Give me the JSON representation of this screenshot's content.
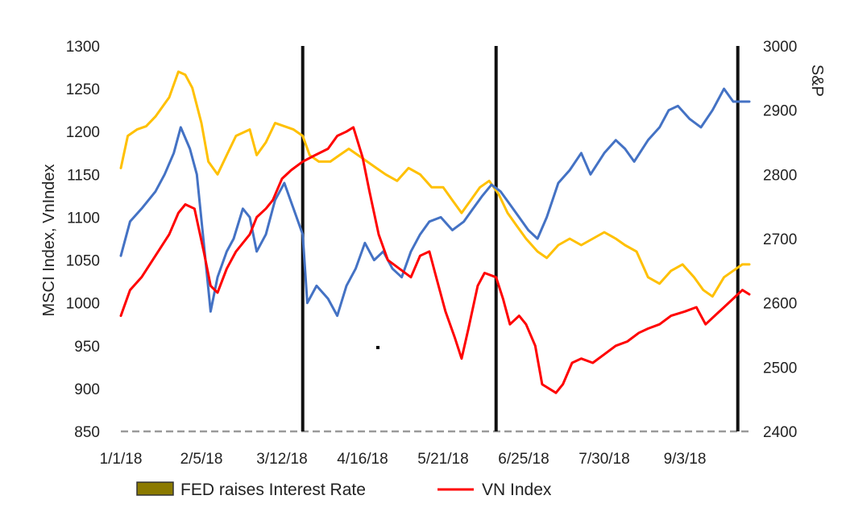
{
  "chart_data": {
    "type": "line",
    "title": "",
    "xlabel": "",
    "ylabel_left": "MSCI Index, VnIndex",
    "ylabel_right": "S&P",
    "x_tick_labels": [
      "1/1/18",
      "2/5/18",
      "3/12/18",
      "4/16/18",
      "5/21/18",
      "6/25/18",
      "7/30/18",
      "9/3/18"
    ],
    "x_tick_dates": [
      "2018-01-01",
      "2018-02-05",
      "2018-03-12",
      "2018-04-16",
      "2018-05-21",
      "2018-06-25",
      "2018-07-30",
      "2018-09-03"
    ],
    "xlim": [
      "2018-01-01",
      "2018-10-01"
    ],
    "ylim_left": [
      850,
      1300
    ],
    "yticks_left": [
      "850",
      "900",
      "950",
      "1000",
      "1050",
      "1100",
      "1150",
      "1200",
      "1250",
      "1300"
    ],
    "ylim_right": [
      2400,
      3000
    ],
    "yticks_right": [
      "2400",
      "2500",
      "2600",
      "2700",
      "2800",
      "2900",
      "3000"
    ],
    "event_dates": [
      "2018-03-21",
      "2018-06-13",
      "2018-09-26"
    ],
    "grid": false,
    "legend_position": "bottom",
    "legend": [
      {
        "label": "FED raises Interest Rate",
        "type": "box",
        "color": "#8b7a00"
      },
      {
        "label": "VN Index",
        "type": "line",
        "color": "#ff0000"
      }
    ],
    "series": [
      {
        "name": "VN Index",
        "axis": "left",
        "color": "#ff0000",
        "points": [
          [
            "2018-01-01",
            985
          ],
          [
            "2018-01-05",
            1015
          ],
          [
            "2018-01-10",
            1030
          ],
          [
            "2018-01-16",
            1055
          ],
          [
            "2018-01-22",
            1080
          ],
          [
            "2018-01-26",
            1105
          ],
          [
            "2018-01-29",
            1115
          ],
          [
            "2018-02-02",
            1110
          ],
          [
            "2018-02-06",
            1060
          ],
          [
            "2018-02-09",
            1020
          ],
          [
            "2018-02-12",
            1012
          ],
          [
            "2018-02-16",
            1040
          ],
          [
            "2018-02-20",
            1060
          ],
          [
            "2018-02-26",
            1080
          ],
          [
            "2018-03-01",
            1100
          ],
          [
            "2018-03-05",
            1110
          ],
          [
            "2018-03-08",
            1120
          ],
          [
            "2018-03-12",
            1145
          ],
          [
            "2018-03-16",
            1155
          ],
          [
            "2018-03-21",
            1165
          ],
          [
            "2018-03-26",
            1172
          ],
          [
            "2018-04-01",
            1180
          ],
          [
            "2018-04-05",
            1195
          ],
          [
            "2018-04-09",
            1200
          ],
          [
            "2018-04-12",
            1205
          ],
          [
            "2018-04-16",
            1170
          ],
          [
            "2018-04-19",
            1130
          ],
          [
            "2018-04-23",
            1080
          ],
          [
            "2018-04-27",
            1050
          ],
          [
            "2018-05-02",
            1040
          ],
          [
            "2018-05-07",
            1030
          ],
          [
            "2018-05-11",
            1055
          ],
          [
            "2018-05-15",
            1060
          ],
          [
            "2018-05-18",
            1030
          ],
          [
            "2018-05-22",
            990
          ],
          [
            "2018-05-26",
            960
          ],
          [
            "2018-05-29",
            935
          ],
          [
            "2018-06-01",
            970
          ],
          [
            "2018-06-05",
            1020
          ],
          [
            "2018-06-08",
            1035
          ],
          [
            "2018-06-13",
            1030
          ],
          [
            "2018-06-16",
            1005
          ],
          [
            "2018-06-19",
            975
          ],
          [
            "2018-06-23",
            985
          ],
          [
            "2018-06-26",
            975
          ],
          [
            "2018-06-30",
            950
          ],
          [
            "2018-07-03",
            905
          ],
          [
            "2018-07-06",
            900
          ],
          [
            "2018-07-09",
            895
          ],
          [
            "2018-07-12",
            905
          ],
          [
            "2018-07-16",
            930
          ],
          [
            "2018-07-20",
            935
          ],
          [
            "2018-07-25",
            930
          ],
          [
            "2018-07-30",
            940
          ],
          [
            "2018-08-04",
            950
          ],
          [
            "2018-08-09",
            955
          ],
          [
            "2018-08-14",
            965
          ],
          [
            "2018-08-18",
            970
          ],
          [
            "2018-08-23",
            975
          ],
          [
            "2018-08-28",
            985
          ],
          [
            "2018-09-03",
            990
          ],
          [
            "2018-09-08",
            995
          ],
          [
            "2018-09-12",
            975
          ],
          [
            "2018-09-16",
            985
          ],
          [
            "2018-09-20",
            995
          ],
          [
            "2018-09-24",
            1005
          ],
          [
            "2018-09-28",
            1015
          ],
          [
            "2018-10-01",
            1010
          ]
        ]
      },
      {
        "name": "",
        "axis": "left",
        "color": "#4472c4",
        "points": [
          [
            "2018-01-01",
            1055
          ],
          [
            "2018-01-05",
            1095
          ],
          [
            "2018-01-10",
            1110
          ],
          [
            "2018-01-16",
            1130
          ],
          [
            "2018-01-20",
            1150
          ],
          [
            "2018-01-24",
            1175
          ],
          [
            "2018-01-27",
            1205
          ],
          [
            "2018-01-31",
            1180
          ],
          [
            "2018-02-03",
            1150
          ],
          [
            "2018-02-06",
            1070
          ],
          [
            "2018-02-09",
            990
          ],
          [
            "2018-02-12",
            1030
          ],
          [
            "2018-02-16",
            1060
          ],
          [
            "2018-02-19",
            1075
          ],
          [
            "2018-02-23",
            1110
          ],
          [
            "2018-02-26",
            1100
          ],
          [
            "2018-03-01",
            1060
          ],
          [
            "2018-03-05",
            1080
          ],
          [
            "2018-03-09",
            1120
          ],
          [
            "2018-03-13",
            1140
          ],
          [
            "2018-03-17",
            1110
          ],
          [
            "2018-03-21",
            1080
          ],
          [
            "2018-03-23",
            1000
          ],
          [
            "2018-03-27",
            1020
          ],
          [
            "2018-04-01",
            1005
          ],
          [
            "2018-04-05",
            985
          ],
          [
            "2018-04-09",
            1020
          ],
          [
            "2018-04-13",
            1040
          ],
          [
            "2018-04-17",
            1070
          ],
          [
            "2018-04-21",
            1050
          ],
          [
            "2018-04-25",
            1060
          ],
          [
            "2018-04-29",
            1040
          ],
          [
            "2018-05-03",
            1030
          ],
          [
            "2018-05-07",
            1060
          ],
          [
            "2018-05-11",
            1080
          ],
          [
            "2018-05-15",
            1095
          ],
          [
            "2018-05-20",
            1100
          ],
          [
            "2018-05-25",
            1085
          ],
          [
            "2018-05-30",
            1095
          ],
          [
            "2018-06-03",
            1110
          ],
          [
            "2018-06-07",
            1125
          ],
          [
            "2018-06-11",
            1138
          ],
          [
            "2018-06-15",
            1130
          ],
          [
            "2018-06-19",
            1115
          ],
          [
            "2018-06-23",
            1100
          ],
          [
            "2018-06-27",
            1085
          ],
          [
            "2018-07-01",
            1075
          ],
          [
            "2018-07-05",
            1100
          ],
          [
            "2018-07-10",
            1140
          ],
          [
            "2018-07-15",
            1155
          ],
          [
            "2018-07-20",
            1175
          ],
          [
            "2018-07-24",
            1150
          ],
          [
            "2018-07-30",
            1175
          ],
          [
            "2018-08-04",
            1190
          ],
          [
            "2018-08-08",
            1180
          ],
          [
            "2018-08-12",
            1165
          ],
          [
            "2018-08-18",
            1190
          ],
          [
            "2018-08-23",
            1205
          ],
          [
            "2018-08-27",
            1225
          ],
          [
            "2018-08-31",
            1230
          ],
          [
            "2018-09-05",
            1215
          ],
          [
            "2018-09-10",
            1205
          ],
          [
            "2018-09-15",
            1225
          ],
          [
            "2018-09-20",
            1250
          ],
          [
            "2018-09-24",
            1235
          ],
          [
            "2018-10-01",
            1235
          ]
        ]
      },
      {
        "name": "",
        "axis": "right",
        "color": "#ffc000",
        "points": [
          [
            "2018-01-01",
            2810
          ],
          [
            "2018-01-04",
            2860
          ],
          [
            "2018-01-08",
            2870
          ],
          [
            "2018-01-12",
            2875
          ],
          [
            "2018-01-16",
            2890
          ],
          [
            "2018-01-22",
            2920
          ],
          [
            "2018-01-26",
            2960
          ],
          [
            "2018-01-29",
            2955
          ],
          [
            "2018-02-01",
            2935
          ],
          [
            "2018-02-05",
            2880
          ],
          [
            "2018-02-08",
            2820
          ],
          [
            "2018-02-12",
            2800
          ],
          [
            "2018-02-16",
            2830
          ],
          [
            "2018-02-20",
            2860
          ],
          [
            "2018-02-26",
            2870
          ],
          [
            "2018-03-01",
            2830
          ],
          [
            "2018-03-05",
            2850
          ],
          [
            "2018-03-09",
            2880
          ],
          [
            "2018-03-13",
            2875
          ],
          [
            "2018-03-17",
            2870
          ],
          [
            "2018-03-21",
            2860
          ],
          [
            "2018-03-24",
            2830
          ],
          [
            "2018-03-28",
            2820
          ],
          [
            "2018-04-02",
            2820
          ],
          [
            "2018-04-06",
            2830
          ],
          [
            "2018-04-10",
            2840
          ],
          [
            "2018-04-14",
            2830
          ],
          [
            "2018-04-18",
            2820
          ],
          [
            "2018-04-22",
            2810
          ],
          [
            "2018-04-26",
            2800
          ],
          [
            "2018-05-01",
            2790
          ],
          [
            "2018-05-06",
            2810
          ],
          [
            "2018-05-11",
            2800
          ],
          [
            "2018-05-16",
            2780
          ],
          [
            "2018-05-21",
            2780
          ],
          [
            "2018-05-25",
            2760
          ],
          [
            "2018-05-29",
            2740
          ],
          [
            "2018-06-02",
            2760
          ],
          [
            "2018-06-06",
            2780
          ],
          [
            "2018-06-10",
            2790
          ],
          [
            "2018-06-14",
            2770
          ],
          [
            "2018-06-18",
            2740
          ],
          [
            "2018-06-22",
            2720
          ],
          [
            "2018-06-26",
            2700
          ],
          [
            "2018-07-01",
            2680
          ],
          [
            "2018-07-05",
            2670
          ],
          [
            "2018-07-10",
            2690
          ],
          [
            "2018-07-15",
            2700
          ],
          [
            "2018-07-20",
            2690
          ],
          [
            "2018-07-25",
            2700
          ],
          [
            "2018-07-30",
            2710
          ],
          [
            "2018-08-04",
            2700
          ],
          [
            "2018-08-08",
            2690
          ],
          [
            "2018-08-13",
            2680
          ],
          [
            "2018-08-18",
            2640
          ],
          [
            "2018-08-23",
            2630
          ],
          [
            "2018-08-28",
            2650
          ],
          [
            "2018-09-02",
            2660
          ],
          [
            "2018-09-07",
            2640
          ],
          [
            "2018-09-11",
            2620
          ],
          [
            "2018-09-15",
            2610
          ],
          [
            "2018-09-20",
            2640
          ],
          [
            "2018-09-24",
            2650
          ],
          [
            "2018-09-28",
            2660
          ],
          [
            "2018-10-01",
            2660
          ]
        ]
      }
    ]
  }
}
